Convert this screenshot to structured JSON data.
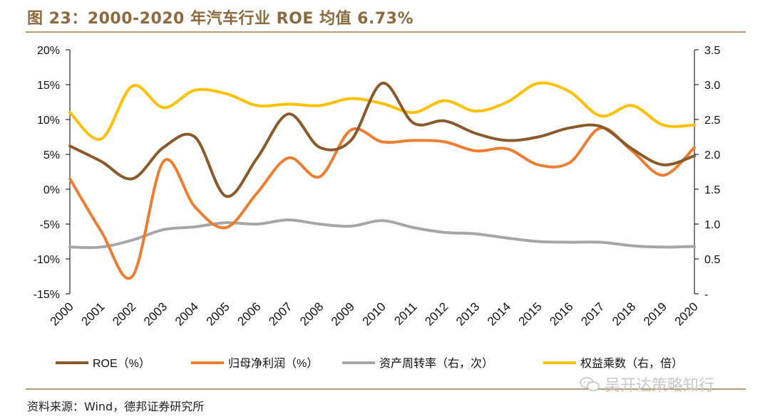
{
  "header": {
    "title": "图 23：2000-2020 年汽车行业 ROE 均值 6.73%"
  },
  "footer": {
    "source": "资料来源：Wind，德邦证券研究所"
  },
  "watermark": {
    "text": "吴开达策略知行"
  },
  "chart_data": {
    "type": "line",
    "title": "图 23：2000-2020 年汽车行业 ROE 均值 6.73%",
    "categories": [
      "2000",
      "2001",
      "2002",
      "2003",
      "2004",
      "2005",
      "2006",
      "2007",
      "2008",
      "2009",
      "2010",
      "2011",
      "2012",
      "2013",
      "2014",
      "2015",
      "2016",
      "2017",
      "2018",
      "2019",
      "2020"
    ],
    "left_axis": {
      "min": -15,
      "max": 20,
      "step": 5,
      "tick_labels": [
        "-15%",
        "-10%",
        "-5%",
        "0%",
        "5%",
        "10%",
        "15%",
        "20%"
      ]
    },
    "right_axis": {
      "min": 0,
      "max": 3.5,
      "step": 0.5,
      "tick_labels": [
        "-",
        "0.5",
        "1.0",
        "1.5",
        "2.0",
        "2.5",
        "3.0",
        "3.5"
      ]
    },
    "series": [
      {
        "name": "ROE（%）",
        "axis": "left",
        "color": "#8b5a2b",
        "values": [
          6.2,
          4.0,
          1.5,
          6.0,
          7.5,
          -1.0,
          4.5,
          10.8,
          6.0,
          7.0,
          15.2,
          9.5,
          9.8,
          8.0,
          7.0,
          7.5,
          8.8,
          9.0,
          5.8,
          3.5,
          4.8
        ]
      },
      {
        "name": "归母净利润（%）",
        "axis": "left",
        "color": "#ed7d31",
        "values": [
          1.5,
          -6.0,
          -12.5,
          4.0,
          -2.5,
          -5.5,
          -0.5,
          4.5,
          1.8,
          8.5,
          6.8,
          7.0,
          6.8,
          5.5,
          5.8,
          3.5,
          3.8,
          8.8,
          5.5,
          2.0,
          6.0
        ]
      },
      {
        "name": "资产周转率（右，次）",
        "axis": "right",
        "color": "#a6a6a6",
        "values": [
          0.67,
          0.67,
          0.77,
          0.92,
          0.96,
          1.02,
          1.0,
          1.06,
          1.0,
          0.97,
          1.05,
          0.95,
          0.88,
          0.86,
          0.8,
          0.75,
          0.74,
          0.74,
          0.69,
          0.67,
          0.68
        ]
      },
      {
        "name": "权益乘数（右，倍）",
        "axis": "right",
        "color": "#ffc000",
        "values": [
          2.6,
          2.22,
          2.98,
          2.67,
          2.92,
          2.87,
          2.7,
          2.72,
          2.7,
          2.8,
          2.73,
          2.6,
          2.77,
          2.62,
          2.75,
          3.02,
          2.9,
          2.55,
          2.7,
          2.42,
          2.42
        ]
      }
    ],
    "legend_position": "bottom"
  }
}
